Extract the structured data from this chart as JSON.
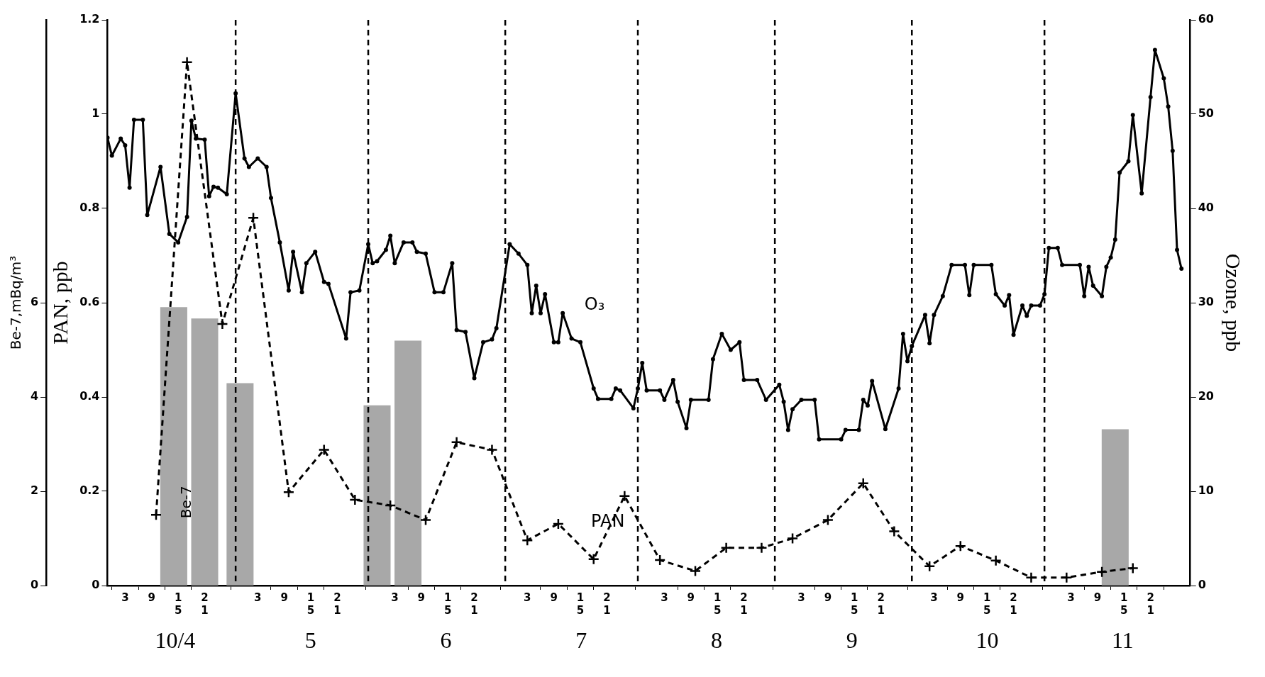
{
  "chart_data": {
    "type": "line",
    "ylabel": "PAN, ppb",
    "y2label": "Ozone, ppb",
    "y3label": "Be-7,mBq/m³",
    "xlim": [
      "--03-30",
      "--11-30"
    ],
    "xticks": [
      {
        "value": "--04-03",
        "label": "3"
      },
      {
        "value": "--04-09",
        "label": "9"
      },
      {
        "value": "--04-15",
        "label": "15"
      },
      {
        "value": "--04-21",
        "label": "21"
      },
      {
        "value": "--05-03",
        "label": "3"
      },
      {
        "value": "--05-09",
        "label": "9"
      },
      {
        "value": "--05-15",
        "label": "15"
      },
      {
        "value": "--05-21",
        "label": "21"
      },
      {
        "value": "--06-03",
        "label": "3"
      },
      {
        "value": "--06-09",
        "label": "9"
      },
      {
        "value": "--06-15",
        "label": "15"
      },
      {
        "value": "--06-21",
        "label": "21"
      },
      {
        "value": "--07-03",
        "label": "3"
      },
      {
        "value": "--07-09",
        "label": "9"
      },
      {
        "value": "--07-15",
        "label": "15"
      },
      {
        "value": "--07-21",
        "label": "21"
      },
      {
        "value": "--08-03",
        "label": "3"
      },
      {
        "value": "--08-09",
        "label": "9"
      },
      {
        "value": "--08-15",
        "label": "15"
      },
      {
        "value": "--08-21",
        "label": "21"
      },
      {
        "value": "--09-03",
        "label": "3"
      },
      {
        "value": "--09-09",
        "label": "9"
      },
      {
        "value": "--09-15",
        "label": "15"
      },
      {
        "value": "--09-21",
        "label": "21"
      },
      {
        "value": "--10-03",
        "label": "3"
      },
      {
        "value": "--10-09",
        "label": "9"
      },
      {
        "value": "--10-15",
        "label": "15"
      },
      {
        "value": "--10-21",
        "label": "21"
      },
      {
        "value": "--11-03",
        "label": "3"
      },
      {
        "value": "--11-09",
        "label": "9"
      },
      {
        "value": "--11-15",
        "label": "15"
      },
      {
        "value": "--11-21",
        "label": "21"
      }
    ],
    "ylim": [
      0,
      1.2
    ],
    "yticks": [
      0,
      0.2,
      0.4,
      0.6,
      0.8,
      1,
      1.2
    ],
    "y2lim": [
      0,
      60
    ],
    "y2ticks": [
      0,
      10,
      20,
      30,
      40,
      50,
      60
    ],
    "y3lim": [
      0,
      12
    ],
    "y3ticks": [
      0,
      2,
      4,
      6
    ],
    "ref_lines": [
      {
        "axis": "x",
        "value": "--04-28",
        "color": "#000000",
        "line_style": "dashed"
      },
      {
        "axis": "x",
        "value": "--05-28",
        "color": "#000000",
        "line_style": "dashed"
      },
      {
        "axis": "x",
        "value": "--06-28",
        "color": "#000000",
        "line_style": "dashed"
      },
      {
        "axis": "x",
        "value": "--07-28",
        "color": "#000000",
        "line_style": "dashed"
      },
      {
        "axis": "x",
        "value": "--08-28",
        "color": "#000000",
        "line_style": "dashed"
      },
      {
        "axis": "x",
        "value": "--09-28",
        "color": "#000000",
        "line_style": "dashed"
      },
      {
        "axis": "x",
        "value": "--10-28",
        "color": "#000000",
        "line_style": "dashed"
      }
    ],
    "annotations": [
      "10/4",
      "5",
      "6",
      "7",
      "8",
      "9",
      "10",
      "11"
    ],
    "series": [
      {
        "name": "Be-7",
        "type": "bar",
        "axis": "y3",
        "color": "#a8a8a8",
        "x": [
          "--04-14",
          "--04-21",
          "--04-29",
          "--05-30",
          "--06-06",
          "--11-13"
        ],
        "values": [
          5.9,
          5.66,
          4.29,
          3.82,
          5.19,
          3.31
        ]
      },
      {
        "name": "O₃",
        "axis": "y2",
        "color": "#000000",
        "marker": "circle",
        "line_style": "solid",
        "x": [
          "--03-30",
          "--03-31",
          "--04-02",
          "--04-03",
          "--04-04",
          "--04-05",
          "--04-07",
          "--04-08",
          "--04-11",
          "--04-13",
          "--04-15",
          "--04-17",
          "--04-18",
          "--04-19",
          "--04-21",
          "--04-22",
          "--04-23",
          "--04-24",
          "--04-26",
          "--04-28",
          "--04-30",
          "--05-01",
          "--05-03",
          "--05-05",
          "--05-06",
          "--05-08",
          "--05-10",
          "--05-11",
          "--05-13",
          "--05-14",
          "--05-16",
          "--05-18",
          "--05-19",
          "--05-23",
          "--05-24",
          "--05-26",
          "--05-28",
          "--05-29",
          "--05-30",
          "--06-01",
          "--06-02",
          "--06-03",
          "--06-05",
          "--06-07",
          "--06-08",
          "--06-10",
          "--06-12",
          "--06-14",
          "--06-16",
          "--06-17",
          "--06-19",
          "--06-21",
          "--06-23",
          "--06-25",
          "--06-26",
          "--06-29",
          "--07-01",
          "--07-03",
          "--07-04",
          "--07-05",
          "--07-06",
          "--07-07",
          "--07-09",
          "--07-10",
          "--07-11",
          "--07-13",
          "--07-15",
          "--07-18",
          "--07-19",
          "--07-22",
          "--07-23",
          "--07-24",
          "--07-27",
          "--07-28",
          "--07-29",
          "--07-30",
          "--08-02",
          "--08-03",
          "--08-05",
          "--08-06",
          "--08-08",
          "--08-09",
          "--08-13",
          "--08-14",
          "--08-16",
          "--08-18",
          "--08-20",
          "--08-21",
          "--08-24",
          "--08-26",
          "--08-29",
          "--08-30",
          "--08-31",
          "--09-01",
          "--09-03",
          "--09-06",
          "--09-07",
          "--09-12",
          "--09-13",
          "--09-16",
          "--09-17",
          "--09-18",
          "--09-19",
          "--09-22",
          "--09-25",
          "--09-26",
          "--09-27",
          "--09-28",
          "--10-01",
          "--10-02",
          "--10-03",
          "--10-05",
          "--10-07",
          "--10-10",
          "--10-11",
          "--10-12",
          "--10-16",
          "--10-17",
          "--10-19",
          "--10-20",
          "--10-21",
          "--10-23",
          "--10-24",
          "--10-25",
          "--10-27",
          "--10-28",
          "--10-29",
          "--10-31",
          "--11-01",
          "--11-05",
          "--11-06",
          "--11-07",
          "--11-08",
          "--11-10",
          "--11-11",
          "--11-12",
          "--11-13",
          "--11-14",
          "--11-16",
          "--11-17",
          "--11-19",
          "--11-21",
          "--11-22",
          "--11-24",
          "--11-25",
          "--11-26",
          "--11-27",
          "--11-28"
        ],
        "values": [
          47.5,
          45.6,
          47.4,
          46.7,
          42.2,
          49.4,
          49.4,
          39.3,
          44.4,
          37.3,
          36.4,
          39.1,
          49.3,
          47.4,
          47.3,
          41.3,
          42.3,
          42.2,
          41.5,
          52.2,
          45.3,
          44.4,
          45.3,
          44.4,
          41.1,
          36.4,
          31.3,
          35.4,
          31.1,
          34.2,
          35.4,
          32.2,
          32.0,
          26.2,
          31.1,
          31.3,
          36.2,
          34.2,
          34.4,
          35.6,
          37.1,
          34.2,
          36.4,
          36.4,
          35.4,
          35.2,
          31.1,
          31.1,
          34.2,
          27.1,
          26.9,
          22.0,
          25.8,
          26.1,
          27.3,
          36.2,
          35.2,
          34.0,
          28.9,
          31.8,
          28.9,
          30.9,
          25.8,
          25.8,
          28.9,
          26.2,
          25.8,
          20.9,
          19.8,
          19.8,
          20.9,
          20.7,
          18.8,
          20.9,
          23.6,
          20.7,
          20.7,
          19.7,
          21.8,
          19.5,
          16.7,
          19.7,
          19.7,
          24.0,
          26.7,
          25.0,
          25.8,
          21.8,
          21.8,
          19.7,
          21.3,
          19.5,
          16.5,
          18.7,
          19.7,
          19.7,
          15.5,
          15.5,
          16.5,
          16.5,
          19.7,
          19.1,
          21.7,
          16.6,
          20.9,
          26.7,
          23.8,
          25.4,
          28.7,
          25.7,
          28.7,
          30.7,
          34.0,
          34.0,
          30.8,
          34.0,
          34.0,
          30.9,
          29.7,
          30.8,
          26.6,
          29.7,
          28.6,
          29.7,
          29.7,
          30.9,
          35.8,
          35.8,
          34.0,
          34.0,
          30.7,
          33.8,
          31.8,
          30.7,
          33.8,
          34.8,
          36.7,
          43.8,
          45.0,
          49.9,
          41.6,
          51.8,
          56.8,
          53.8,
          50.8,
          46.1,
          35.6,
          33.6
        ]
      },
      {
        "name": "PAN",
        "color": "#000000",
        "marker": "cross",
        "line_style": "dashed",
        "x": [
          "--04-10",
          "--04-17",
          "--04-25",
          "--05-02",
          "--05-10",
          "--05-18",
          "--05-25",
          "--06-02",
          "--06-10",
          "--06-17",
          "--06-25",
          "--07-03",
          "--07-10",
          "--07-18",
          "--07-25",
          "--08-02",
          "--08-10",
          "--08-17",
          "--08-25",
          "--09-01",
          "--09-09",
          "--09-17",
          "--09-24",
          "--10-02",
          "--10-09",
          "--10-17",
          "--10-25",
          "--11-02",
          "--11-10",
          "--11-17"
        ],
        "values": [
          0.15,
          1.11,
          0.555,
          0.78,
          0.198,
          0.288,
          0.182,
          0.17,
          0.139,
          0.304,
          0.288,
          0.096,
          0.131,
          0.056,
          0.19,
          0.054,
          0.031,
          0.08,
          0.08,
          0.1,
          0.139,
          0.217,
          0.115,
          0.041,
          0.084,
          0.053,
          0.017,
          0.017,
          0.029,
          0.037
        ]
      }
    ]
  }
}
